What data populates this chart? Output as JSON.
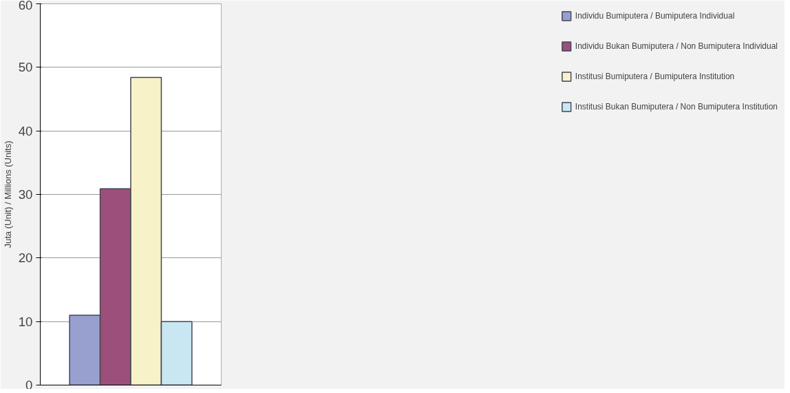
{
  "chart_data": {
    "type": "bar",
    "ylabel": "Juta (Unit) / Millions (Units)",
    "categories": [
      null
    ],
    "series": [
      {
        "name": "Individu Bumiputera / Bumiputera Individual",
        "color": "#98a0cf",
        "values": [
          11.0
        ]
      },
      {
        "name": "Individu Bukan Bumiputera / Non Bumiputera Individual",
        "color": "#9b4f7a",
        "values": [
          30.9
        ]
      },
      {
        "name": "Institusi Bumiputera / Bumiputera Institution",
        "color": "#f7f2c8",
        "values": [
          48.4
        ]
      },
      {
        "name": "Institusi Bukan Bumiputera / Non Bumiputera Institution",
        "color": "#c9e6f3",
        "values": [
          10.0
        ]
      }
    ],
    "ylim": [
      0,
      60
    ],
    "yticks": [
      0,
      10,
      20,
      30,
      40,
      50,
      60
    ],
    "grid": "y",
    "legend": "right"
  }
}
